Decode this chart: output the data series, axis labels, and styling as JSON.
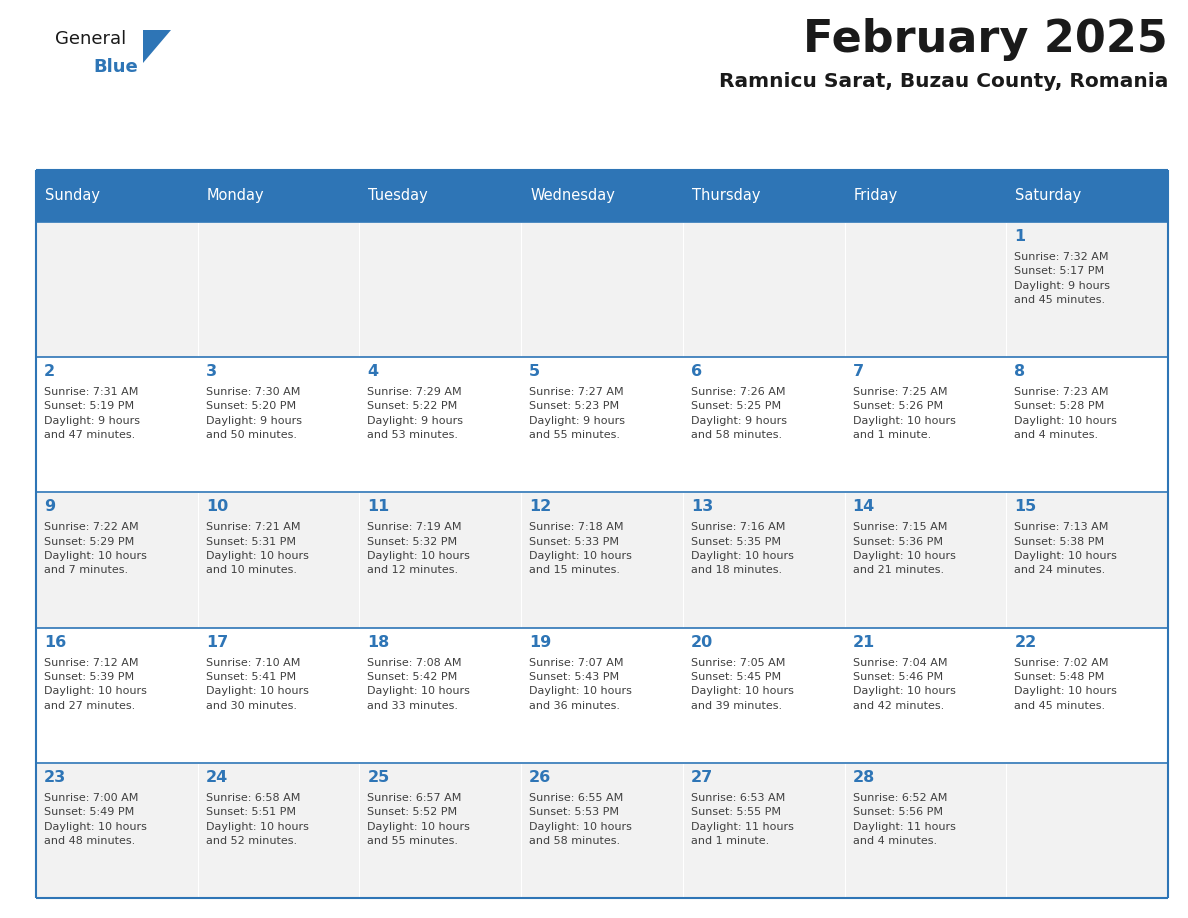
{
  "title": "February 2025",
  "subtitle": "Ramnicu Sarat, Buzau County, Romania",
  "header_bg": "#2E75B6",
  "header_text_color": "#FFFFFF",
  "cell_bg_odd": "#F2F2F2",
  "cell_bg_even": "#FFFFFF",
  "border_color": "#2E75B6",
  "row_line_color": "#2E75B6",
  "title_color": "#1a1a1a",
  "subtitle_color": "#1a1a1a",
  "day_number_color": "#2E75B6",
  "cell_text_color": "#404040",
  "days_of_week": [
    "Sunday",
    "Monday",
    "Tuesday",
    "Wednesday",
    "Thursday",
    "Friday",
    "Saturday"
  ],
  "weeks": [
    [
      {
        "day": "",
        "info": ""
      },
      {
        "day": "",
        "info": ""
      },
      {
        "day": "",
        "info": ""
      },
      {
        "day": "",
        "info": ""
      },
      {
        "day": "",
        "info": ""
      },
      {
        "day": "",
        "info": ""
      },
      {
        "day": "1",
        "info": "Sunrise: 7:32 AM\nSunset: 5:17 PM\nDaylight: 9 hours\nand 45 minutes."
      }
    ],
    [
      {
        "day": "2",
        "info": "Sunrise: 7:31 AM\nSunset: 5:19 PM\nDaylight: 9 hours\nand 47 minutes."
      },
      {
        "day": "3",
        "info": "Sunrise: 7:30 AM\nSunset: 5:20 PM\nDaylight: 9 hours\nand 50 minutes."
      },
      {
        "day": "4",
        "info": "Sunrise: 7:29 AM\nSunset: 5:22 PM\nDaylight: 9 hours\nand 53 minutes."
      },
      {
        "day": "5",
        "info": "Sunrise: 7:27 AM\nSunset: 5:23 PM\nDaylight: 9 hours\nand 55 minutes."
      },
      {
        "day": "6",
        "info": "Sunrise: 7:26 AM\nSunset: 5:25 PM\nDaylight: 9 hours\nand 58 minutes."
      },
      {
        "day": "7",
        "info": "Sunrise: 7:25 AM\nSunset: 5:26 PM\nDaylight: 10 hours\nand 1 minute."
      },
      {
        "day": "8",
        "info": "Sunrise: 7:23 AM\nSunset: 5:28 PM\nDaylight: 10 hours\nand 4 minutes."
      }
    ],
    [
      {
        "day": "9",
        "info": "Sunrise: 7:22 AM\nSunset: 5:29 PM\nDaylight: 10 hours\nand 7 minutes."
      },
      {
        "day": "10",
        "info": "Sunrise: 7:21 AM\nSunset: 5:31 PM\nDaylight: 10 hours\nand 10 minutes."
      },
      {
        "day": "11",
        "info": "Sunrise: 7:19 AM\nSunset: 5:32 PM\nDaylight: 10 hours\nand 12 minutes."
      },
      {
        "day": "12",
        "info": "Sunrise: 7:18 AM\nSunset: 5:33 PM\nDaylight: 10 hours\nand 15 minutes."
      },
      {
        "day": "13",
        "info": "Sunrise: 7:16 AM\nSunset: 5:35 PM\nDaylight: 10 hours\nand 18 minutes."
      },
      {
        "day": "14",
        "info": "Sunrise: 7:15 AM\nSunset: 5:36 PM\nDaylight: 10 hours\nand 21 minutes."
      },
      {
        "day": "15",
        "info": "Sunrise: 7:13 AM\nSunset: 5:38 PM\nDaylight: 10 hours\nand 24 minutes."
      }
    ],
    [
      {
        "day": "16",
        "info": "Sunrise: 7:12 AM\nSunset: 5:39 PM\nDaylight: 10 hours\nand 27 minutes."
      },
      {
        "day": "17",
        "info": "Sunrise: 7:10 AM\nSunset: 5:41 PM\nDaylight: 10 hours\nand 30 minutes."
      },
      {
        "day": "18",
        "info": "Sunrise: 7:08 AM\nSunset: 5:42 PM\nDaylight: 10 hours\nand 33 minutes."
      },
      {
        "day": "19",
        "info": "Sunrise: 7:07 AM\nSunset: 5:43 PM\nDaylight: 10 hours\nand 36 minutes."
      },
      {
        "day": "20",
        "info": "Sunrise: 7:05 AM\nSunset: 5:45 PM\nDaylight: 10 hours\nand 39 minutes."
      },
      {
        "day": "21",
        "info": "Sunrise: 7:04 AM\nSunset: 5:46 PM\nDaylight: 10 hours\nand 42 minutes."
      },
      {
        "day": "22",
        "info": "Sunrise: 7:02 AM\nSunset: 5:48 PM\nDaylight: 10 hours\nand 45 minutes."
      }
    ],
    [
      {
        "day": "23",
        "info": "Sunrise: 7:00 AM\nSunset: 5:49 PM\nDaylight: 10 hours\nand 48 minutes."
      },
      {
        "day": "24",
        "info": "Sunrise: 6:58 AM\nSunset: 5:51 PM\nDaylight: 10 hours\nand 52 minutes."
      },
      {
        "day": "25",
        "info": "Sunrise: 6:57 AM\nSunset: 5:52 PM\nDaylight: 10 hours\nand 55 minutes."
      },
      {
        "day": "26",
        "info": "Sunrise: 6:55 AM\nSunset: 5:53 PM\nDaylight: 10 hours\nand 58 minutes."
      },
      {
        "day": "27",
        "info": "Sunrise: 6:53 AM\nSunset: 5:55 PM\nDaylight: 11 hours\nand 1 minute."
      },
      {
        "day": "28",
        "info": "Sunrise: 6:52 AM\nSunset: 5:56 PM\nDaylight: 11 hours\nand 4 minutes."
      },
      {
        "day": "",
        "info": ""
      }
    ]
  ],
  "logo_text1": "General",
  "logo_text2": "Blue",
  "logo_color1": "#1a1a1a",
  "logo_color2": "#2E75B6",
  "logo_triangle_color": "#2E75B6",
  "fig_width": 11.88,
  "fig_height": 9.18,
  "dpi": 100
}
